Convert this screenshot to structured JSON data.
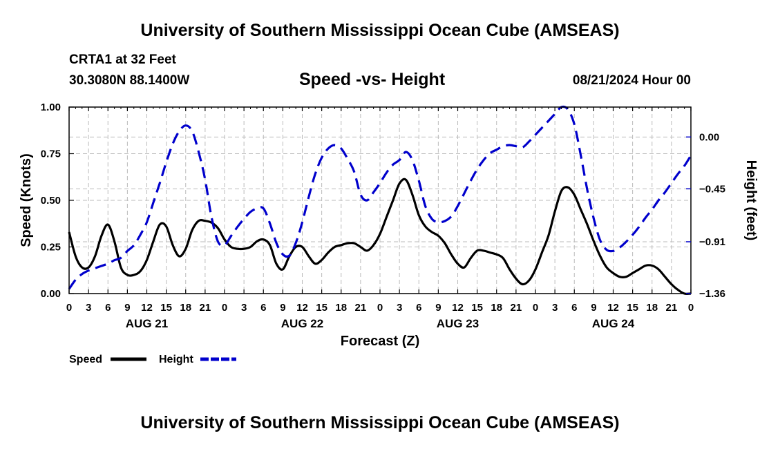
{
  "header": {
    "title": "University of Southern Mississippi Ocean Cube (AMSEAS)",
    "station": "CRTA1 at 32 Feet",
    "location": "30.3080N  88.1400W",
    "subtitle": "Speed -vs- Height",
    "date": "08/21/2024 Hour 00"
  },
  "footer": {
    "title": "University of Southern Mississippi Ocean Cube (AMSEAS)"
  },
  "colors": {
    "speed": "#000000",
    "height": "#0000cc",
    "grid": "#bbbbbb"
  },
  "chart_data": {
    "type": "line",
    "title": "Speed -vs- Height",
    "xlabel": "Forecast (Z)",
    "ylabel": "Speed (Knots)",
    "y2label": "Height (feet)",
    "x_unit": "hours from 08/21/2024 00Z",
    "xlim": [
      0,
      96
    ],
    "ylim": [
      0,
      1.0
    ],
    "y2lim": [
      -1.36,
      0.26
    ],
    "x_tick_labels": [
      "0",
      "3",
      "6",
      "9",
      "12",
      "15",
      "18",
      "21",
      "0",
      "3",
      "6",
      "9",
      "12",
      "15",
      "18",
      "21",
      "0",
      "3",
      "6",
      "9",
      "12",
      "15",
      "18",
      "21",
      "0",
      "3",
      "6",
      "9",
      "12",
      "15",
      "18",
      "21",
      "0"
    ],
    "y_ticks": [
      0.0,
      0.25,
      0.5,
      0.75,
      1.0
    ],
    "y_tick_labels": [
      "0.00",
      "0.25",
      "0.50",
      "0.75",
      "1.00"
    ],
    "y2_ticks": [
      0.0,
      -0.45,
      -0.91,
      -1.36
    ],
    "y2_tick_labels": [
      "0.00",
      "−0.45",
      "−0.91",
      "−1.36"
    ],
    "day_labels": [
      {
        "label": "AUG 21",
        "hour": 12
      },
      {
        "label": "AUG 22",
        "hour": 36
      },
      {
        "label": "AUG 23",
        "hour": 60
      },
      {
        "label": "AUG 24",
        "hour": 84
      }
    ],
    "legend": [
      {
        "name": "Speed",
        "style": "solid"
      },
      {
        "name": "Height",
        "style": "dashed"
      }
    ],
    "series": [
      {
        "name": "Speed",
        "axis": "left",
        "style": "solid",
        "x": [
          0,
          1,
          2,
          3,
          4,
          5,
          6,
          7,
          8,
          9,
          10,
          11,
          12,
          13,
          14,
          15,
          16,
          17,
          18,
          19,
          20,
          21,
          22,
          23,
          24,
          25,
          26,
          27,
          28,
          29,
          30,
          31,
          32,
          33,
          34,
          35,
          36,
          37,
          38,
          39,
          40,
          41,
          42,
          43,
          44,
          45,
          46,
          47,
          48,
          49,
          50,
          51,
          52,
          53,
          54,
          55,
          56,
          57,
          58,
          59,
          60,
          61,
          62,
          63,
          64,
          65,
          66,
          67,
          68,
          69,
          70,
          71,
          72,
          73,
          74,
          75,
          76,
          77,
          78,
          79,
          80,
          81,
          82,
          83,
          84,
          85,
          86,
          87,
          88,
          89,
          90,
          91,
          92,
          93,
          94,
          95,
          96
        ],
        "y": [
          0.33,
          0.2,
          0.14,
          0.14,
          0.2,
          0.31,
          0.37,
          0.28,
          0.14,
          0.1,
          0.1,
          0.12,
          0.18,
          0.28,
          0.37,
          0.36,
          0.26,
          0.2,
          0.24,
          0.34,
          0.39,
          0.39,
          0.38,
          0.35,
          0.29,
          0.25,
          0.24,
          0.24,
          0.25,
          0.28,
          0.29,
          0.26,
          0.16,
          0.13,
          0.2,
          0.25,
          0.25,
          0.2,
          0.16,
          0.18,
          0.22,
          0.25,
          0.26,
          0.27,
          0.27,
          0.25,
          0.23,
          0.26,
          0.32,
          0.41,
          0.5,
          0.59,
          0.61,
          0.53,
          0.42,
          0.36,
          0.33,
          0.31,
          0.27,
          0.21,
          0.16,
          0.14,
          0.19,
          0.23,
          0.23,
          0.22,
          0.21,
          0.19,
          0.13,
          0.08,
          0.05,
          0.07,
          0.13,
          0.22,
          0.31,
          0.44,
          0.55,
          0.57,
          0.53,
          0.45,
          0.37,
          0.28,
          0.2,
          0.14,
          0.11,
          0.09,
          0.09,
          0.11,
          0.13,
          0.15,
          0.15,
          0.13,
          0.09,
          0.05,
          0.02,
          0.0,
          0.0
        ]
      },
      {
        "name": "Height",
        "axis": "right",
        "style": "dashed",
        "x": [
          0,
          1,
          2,
          3,
          4,
          5,
          6,
          7,
          8,
          9,
          10,
          11,
          12,
          13,
          14,
          15,
          16,
          17,
          18,
          19,
          20,
          21,
          22,
          23,
          24,
          25,
          26,
          27,
          28,
          29,
          30,
          31,
          32,
          33,
          34,
          35,
          36,
          37,
          38,
          39,
          40,
          41,
          42,
          43,
          44,
          45,
          46,
          47,
          48,
          49,
          50,
          51,
          52,
          53,
          54,
          55,
          56,
          57,
          58,
          59,
          60,
          61,
          62,
          63,
          64,
          65,
          66,
          67,
          68,
          69,
          70,
          71,
          72,
          73,
          74,
          75,
          76,
          77,
          78,
          79,
          80,
          81,
          82,
          83,
          84,
          85,
          86,
          87,
          88,
          89,
          90,
          91,
          92,
          93,
          94,
          95,
          96
        ],
        "y": [
          -1.32,
          -1.24,
          -1.19,
          -1.16,
          -1.14,
          -1.12,
          -1.1,
          -1.07,
          -1.05,
          -0.99,
          -0.94,
          -0.85,
          -0.74,
          -0.57,
          -0.4,
          -0.22,
          -0.06,
          0.05,
          0.1,
          0.05,
          -0.13,
          -0.37,
          -0.7,
          -0.91,
          -0.94,
          -0.86,
          -0.78,
          -0.71,
          -0.65,
          -0.62,
          -0.62,
          -0.75,
          -0.92,
          -1.02,
          -1.03,
          -0.92,
          -0.74,
          -0.52,
          -0.32,
          -0.18,
          -0.1,
          -0.07,
          -0.1,
          -0.19,
          -0.3,
          -0.5,
          -0.55,
          -0.48,
          -0.4,
          -0.31,
          -0.24,
          -0.2,
          -0.13,
          -0.2,
          -0.38,
          -0.6,
          -0.71,
          -0.74,
          -0.73,
          -0.69,
          -0.6,
          -0.49,
          -0.38,
          -0.28,
          -0.2,
          -0.14,
          -0.11,
          -0.08,
          -0.07,
          -0.08,
          -0.09,
          -0.04,
          0.02,
          0.08,
          0.14,
          0.2,
          0.26,
          0.24,
          0.11,
          -0.16,
          -0.46,
          -0.71,
          -0.9,
          -0.98,
          -0.99,
          -0.96,
          -0.91,
          -0.85,
          -0.78,
          -0.7,
          -0.63,
          -0.55,
          -0.48,
          -0.4,
          -0.32,
          -0.25,
          -0.16
        ]
      }
    ]
  }
}
